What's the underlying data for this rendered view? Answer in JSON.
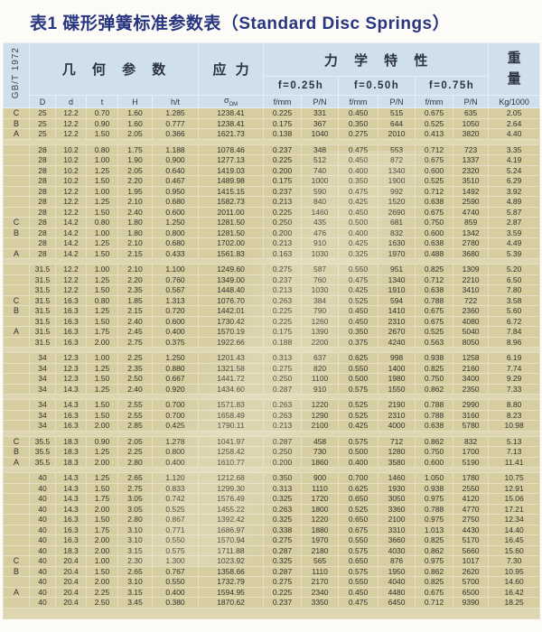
{
  "title": "表1 碟形弹簧标准参数表（Standard Disc Springs）",
  "standard": "GB/T 1972",
  "header": {
    "geometry": "几 何 参 数",
    "stress": "应 力",
    "mechanical": "力 学 特 性",
    "weight_line1": "重",
    "weight_line2": "量",
    "f_levels": [
      "f=0.25h",
      "f=0.50h",
      "f=0.75h"
    ],
    "cols": [
      "D",
      "d",
      "t",
      "H",
      "h/t"
    ],
    "sigma": "σ",
    "sigma_sub": "OM",
    "mech_cols": [
      "f/mm",
      "P/N",
      "f/mm",
      "P/N",
      "f/mm",
      "P/N"
    ],
    "weight_unit": "Kg/1000"
  },
  "chart_data": {
    "type": "table",
    "columns": [
      "series",
      "D",
      "d",
      "t",
      "H",
      "h/t",
      "σOM",
      "f/mm",
      "P/N",
      "f/mm",
      "P/N",
      "f/mm",
      "P/N",
      "Kg/1000"
    ],
    "rows": [
      [
        "C",
        "25",
        "12.2",
        "0.70",
        "1.60",
        "1.285",
        "1238.41",
        "0.225",
        "331",
        "0.450",
        "515",
        "0.675",
        "635",
        "2.05"
      ],
      [
        "B",
        "25",
        "12.2",
        "0.90",
        "1.60",
        "0.777",
        "1238.41",
        "0.175",
        "367",
        "0.350",
        "644",
        "0.525",
        "1050",
        "2.64"
      ],
      [
        "A",
        "25",
        "12.2",
        "1.50",
        "2.05",
        "0.366",
        "1621.73",
        "0.138",
        "1040",
        "0.275",
        "2010",
        "0.413",
        "3820",
        "4.40"
      ],
      [],
      [
        "",
        "28",
        "10.2",
        "0.80",
        "1.75",
        "1.188",
        "1078.46",
        "0.237",
        "348",
        "0.475",
        "553",
        "0.712",
        "723",
        "3.35"
      ],
      [
        "",
        "28",
        "10.2",
        "1.00",
        "1.90",
        "0.900",
        "1277.13",
        "0.225",
        "512",
        "0.450",
        "872",
        "0.675",
        "1337",
        "4.19"
      ],
      [
        "",
        "28",
        "10.2",
        "1.25",
        "2.05",
        "0.640",
        "1419.03",
        "0.200",
        "740",
        "0.400",
        "1340",
        "0.600",
        "2320",
        "5.24"
      ],
      [
        "",
        "28",
        "10.2",
        "1.50",
        "2.20",
        "0.467",
        "1489.98",
        "0.175",
        "1000",
        "0.350",
        "1900",
        "0.525",
        "3510",
        "6.29"
      ],
      [
        "",
        "28",
        "12.2",
        "1.00",
        "1.95",
        "0.950",
        "1415.15",
        "0.237",
        "590",
        "0.475",
        "992",
        "0.712",
        "1492",
        "3.92"
      ],
      [
        "",
        "28",
        "12.2",
        "1.25",
        "2.10",
        "0.680",
        "1582.73",
        "0.213",
        "840",
        "0.425",
        "1520",
        "0.638",
        "2590",
        "4.89"
      ],
      [
        "",
        "28",
        "12.2",
        "1.50",
        "2.40",
        "0.600",
        "2011.00",
        "0.225",
        "1460",
        "0.450",
        "2690",
        "0.675",
        "4740",
        "5.87"
      ],
      [
        "C",
        "28",
        "14.2",
        "0.80",
        "1.80",
        "1.250",
        "1281.50",
        "0.250",
        "435",
        "0.500",
        "681",
        "0.750",
        "859",
        "2.87"
      ],
      [
        "B",
        "28",
        "14.2",
        "1.00",
        "1.80",
        "0.800",
        "1281.50",
        "0.200",
        "476",
        "0.400",
        "832",
        "0.600",
        "1342",
        "3.59"
      ],
      [
        "",
        "28",
        "14.2",
        "1.25",
        "2.10",
        "0.680",
        "1702.00",
        "0.213",
        "910",
        "0.425",
        "1630",
        "0.638",
        "2780",
        "4.49"
      ],
      [
        "A",
        "28",
        "14.2",
        "1.50",
        "2.15",
        "0.433",
        "1561.83",
        "0.163",
        "1030",
        "0.325",
        "1970",
        "0.488",
        "3680",
        "5.39"
      ],
      [],
      [
        "",
        "31.5",
        "12.2",
        "1.00",
        "2.10",
        "1.100",
        "1249.60",
        "0.275",
        "587",
        "0.550",
        "951",
        "0.825",
        "1309",
        "5.20"
      ],
      [
        "",
        "31.5",
        "12.2",
        "1.25",
        "2.20",
        "0.760",
        "1349.00",
        "0.237",
        "760",
        "0.475",
        "1340",
        "0.712",
        "2210",
        "6.50"
      ],
      [
        "",
        "31.5",
        "12.2",
        "1.50",
        "2.35",
        "0.567",
        "1448.40",
        "0.213",
        "1030",
        "0.425",
        "1910",
        "0.638",
        "3410",
        "7.80"
      ],
      [
        "C",
        "31.5",
        "16.3",
        "0.80",
        "1.85",
        "1.313",
        "1076.70",
        "0.263",
        "384",
        "0.525",
        "594",
        "0.788",
        "722",
        "3.58"
      ],
      [
        "B",
        "31.5",
        "16.3",
        "1.25",
        "2.15",
        "0.720",
        "1442.01",
        "0.225",
        "790",
        "0.450",
        "1410",
        "0.675",
        "2360",
        "5.60"
      ],
      [
        "",
        "31.5",
        "16.3",
        "1.50",
        "2.40",
        "0.600",
        "1730.42",
        "0.225",
        "1260",
        "0.450",
        "2310",
        "0.675",
        "4080",
        "6.72"
      ],
      [
        "A",
        "31.5",
        "16.3",
        "1.75",
        "2.45",
        "0.400",
        "1570.19",
        "0.175",
        "1390",
        "0.350",
        "2670",
        "0.525",
        "5040",
        "7.84"
      ],
      [
        "",
        "31.5",
        "16.3",
        "2.00",
        "2.75",
        "0.375",
        "1922.66",
        "0.188",
        "2200",
        "0.375",
        "4240",
        "0.563",
        "8050",
        "8.96"
      ],
      [],
      [
        "",
        "34",
        "12.3",
        "1.00",
        "2.25",
        "1.250",
        "1201.43",
        "0.313",
        "637",
        "0.625",
        "998",
        "0.938",
        "1258",
        "6.19"
      ],
      [
        "",
        "34",
        "12.3",
        "1.25",
        "2.35",
        "0.880",
        "1321.58",
        "0.275",
        "820",
        "0.550",
        "1400",
        "0.825",
        "2160",
        "7.74"
      ],
      [
        "",
        "34",
        "12.3",
        "1.50",
        "2.50",
        "0.667",
        "1441.72",
        "0.250",
        "1100",
        "0.500",
        "1980",
        "0.750",
        "3400",
        "9.29"
      ],
      [
        "",
        "34",
        "14.3",
        "1.25",
        "2.40",
        "0.920",
        "1434.60",
        "0.287",
        "910",
        "0.575",
        "1550",
        "0.862",
        "2350",
        "7.33"
      ],
      [],
      [
        "",
        "34",
        "14.3",
        "1.50",
        "2.55",
        "0.700",
        "1571.83",
        "0.263",
        "1220",
        "0.525",
        "2190",
        "0.788",
        "2990",
        "8.80"
      ],
      [
        "",
        "34",
        "16.3",
        "1.50",
        "2.55",
        "0.700",
        "1658.49",
        "0.263",
        "1290",
        "0.525",
        "2310",
        "0.788",
        "3160",
        "8.23"
      ],
      [
        "",
        "34",
        "16.3",
        "2.00",
        "2.85",
        "0.425",
        "1790.11",
        "0.213",
        "2100",
        "0.425",
        "4000",
        "0.638",
        "5780",
        "10.98"
      ],
      [],
      [
        "C",
        "35.5",
        "18.3",
        "0.90",
        "2.05",
        "1.278",
        "1041.97",
        "0.287",
        "458",
        "0.575",
        "712",
        "0.862",
        "832",
        "5.13"
      ],
      [
        "B",
        "35.5",
        "18.3",
        "1.25",
        "2.25",
        "0.800",
        "1258.42",
        "0.250",
        "730",
        "0.500",
        "1280",
        "0.750",
        "1700",
        "7.13"
      ],
      [
        "A",
        "35.5",
        "18.3",
        "2.00",
        "2.80",
        "0.400",
        "1610.77",
        "0.200",
        "1860",
        "0.400",
        "3580",
        "0.600",
        "5190",
        "11.41"
      ],
      [],
      [
        "",
        "40",
        "14.3",
        "1.25",
        "2.65",
        "1.120",
        "1212.68",
        "0.350",
        "900",
        "0.700",
        "1460",
        "1.050",
        "1780",
        "10.75"
      ],
      [
        "",
        "40",
        "14.3",
        "1.50",
        "2.75",
        "0.833",
        "1299.30",
        "0.313",
        "1110",
        "0.625",
        "1930",
        "0.938",
        "2550",
        "12.91"
      ],
      [
        "",
        "40",
        "14.3",
        "1.75",
        "3.05",
        "0.742",
        "1576.49",
        "0.325",
        "1720",
        "0.650",
        "3050",
        "0.975",
        "4120",
        "15.06"
      ],
      [
        "",
        "40",
        "14.3",
        "2.00",
        "3.05",
        "0.525",
        "1455.22",
        "0.263",
        "1800",
        "0.525",
        "3360",
        "0.788",
        "4770",
        "17.21"
      ],
      [
        "",
        "40",
        "16.3",
        "1.50",
        "2.80",
        "0.867",
        "1392.42",
        "0.325",
        "1220",
        "0.650",
        "2100",
        "0.975",
        "2750",
        "12.34"
      ],
      [
        "",
        "40",
        "16.3",
        "1.75",
        "3.10",
        "0.771",
        "1686.97",
        "0.338",
        "1880",
        "0.675",
        "3310",
        "1.013",
        "4430",
        "14.40"
      ],
      [
        "",
        "40",
        "16.3",
        "2.00",
        "3.10",
        "0.550",
        "1570.94",
        "0.275",
        "1970",
        "0.550",
        "3660",
        "0.825",
        "5170",
        "16.45"
      ],
      [
        "",
        "40",
        "18.3",
        "2.00",
        "3.15",
        "0.575",
        "1711.88",
        "0.287",
        "2180",
        "0.575",
        "4030",
        "0.862",
        "5660",
        "15.60"
      ],
      [
        "C",
        "40",
        "20.4",
        "1.00",
        "2.30",
        "1.300",
        "1023.92",
        "0.325",
        "565",
        "0.650",
        "876",
        "0.975",
        "1017",
        "7.30"
      ],
      [
        "B",
        "40",
        "20.4",
        "1.50",
        "2.65",
        "0.767",
        "1358.66",
        "0.287",
        "1110",
        "0.575",
        "1950",
        "0.862",
        "2620",
        "10.95"
      ],
      [
        "",
        "40",
        "20.4",
        "2.00",
        "3.10",
        "0.550",
        "1732.79",
        "0.275",
        "2170",
        "0.550",
        "4040",
        "0.825",
        "5700",
        "14.60"
      ],
      [
        "A",
        "40",
        "20.4",
        "2.25",
        "3.15",
        "0.400",
        "1594.95",
        "0.225",
        "2340",
        "0.450",
        "4480",
        "0.675",
        "6500",
        "16.42"
      ],
      [
        "",
        "40",
        "20.4",
        "2.50",
        "3.45",
        "0.380",
        "1870.62",
        "0.237",
        "3350",
        "0.475",
        "6450",
        "0.712",
        "9390",
        "18.25"
      ]
    ]
  }
}
